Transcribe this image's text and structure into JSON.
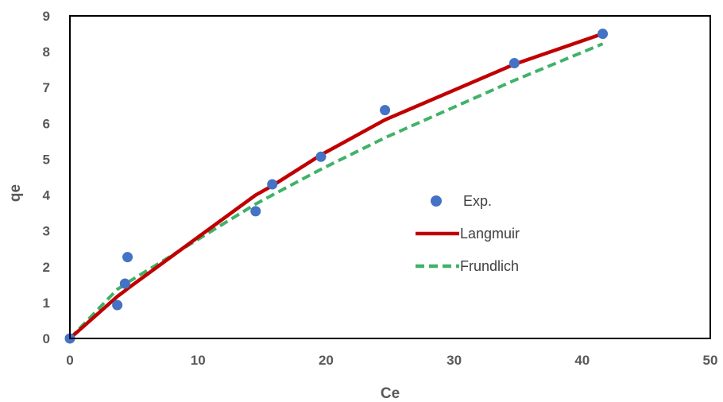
{
  "chart_data": {
    "type": "scatter",
    "xlabel": "Ce",
    "ylabel": "qe",
    "xlim": [
      0,
      50
    ],
    "ylim": [
      0,
      9
    ],
    "xticks": [
      0,
      10,
      20,
      30,
      40,
      50
    ],
    "yticks": [
      0,
      1,
      2,
      3,
      4,
      5,
      6,
      7,
      8,
      9
    ],
    "grid": false,
    "legend_position": "center-right",
    "series": [
      {
        "name": "Exp.",
        "kind": "scatter",
        "color": "#4472C4",
        "points": [
          [
            0,
            0
          ],
          [
            3.7,
            0.93
          ],
          [
            4.3,
            1.53
          ],
          [
            4.5,
            2.27
          ],
          [
            14.5,
            3.55
          ],
          [
            15.8,
            4.3
          ],
          [
            19.6,
            5.07
          ],
          [
            24.6,
            6.37
          ],
          [
            34.7,
            7.68
          ],
          [
            41.6,
            8.5
          ]
        ]
      },
      {
        "name": "Langmuir",
        "kind": "line",
        "color": "#C00000",
        "dash": "solid",
        "points": [
          [
            0,
            0
          ],
          [
            3.7,
            1.17
          ],
          [
            4.3,
            1.33
          ],
          [
            4.5,
            1.39
          ],
          [
            14.5,
            4.0
          ],
          [
            15.8,
            4.26
          ],
          [
            19.6,
            5.12
          ],
          [
            24.6,
            6.1
          ],
          [
            34.7,
            7.65
          ],
          [
            41.6,
            8.5
          ]
        ]
      },
      {
        "name": "Frundlich",
        "kind": "line",
        "color": "#1FA44F",
        "dash": "dashed",
        "points": [
          [
            0,
            0
          ],
          [
            3.7,
            1.37
          ],
          [
            4.3,
            1.5
          ],
          [
            4.5,
            1.56
          ],
          [
            14.5,
            3.75
          ],
          [
            15.8,
            4.0
          ],
          [
            19.6,
            4.72
          ],
          [
            24.6,
            5.6
          ],
          [
            34.7,
            7.2
          ],
          [
            41.6,
            8.22
          ]
        ]
      }
    ]
  }
}
